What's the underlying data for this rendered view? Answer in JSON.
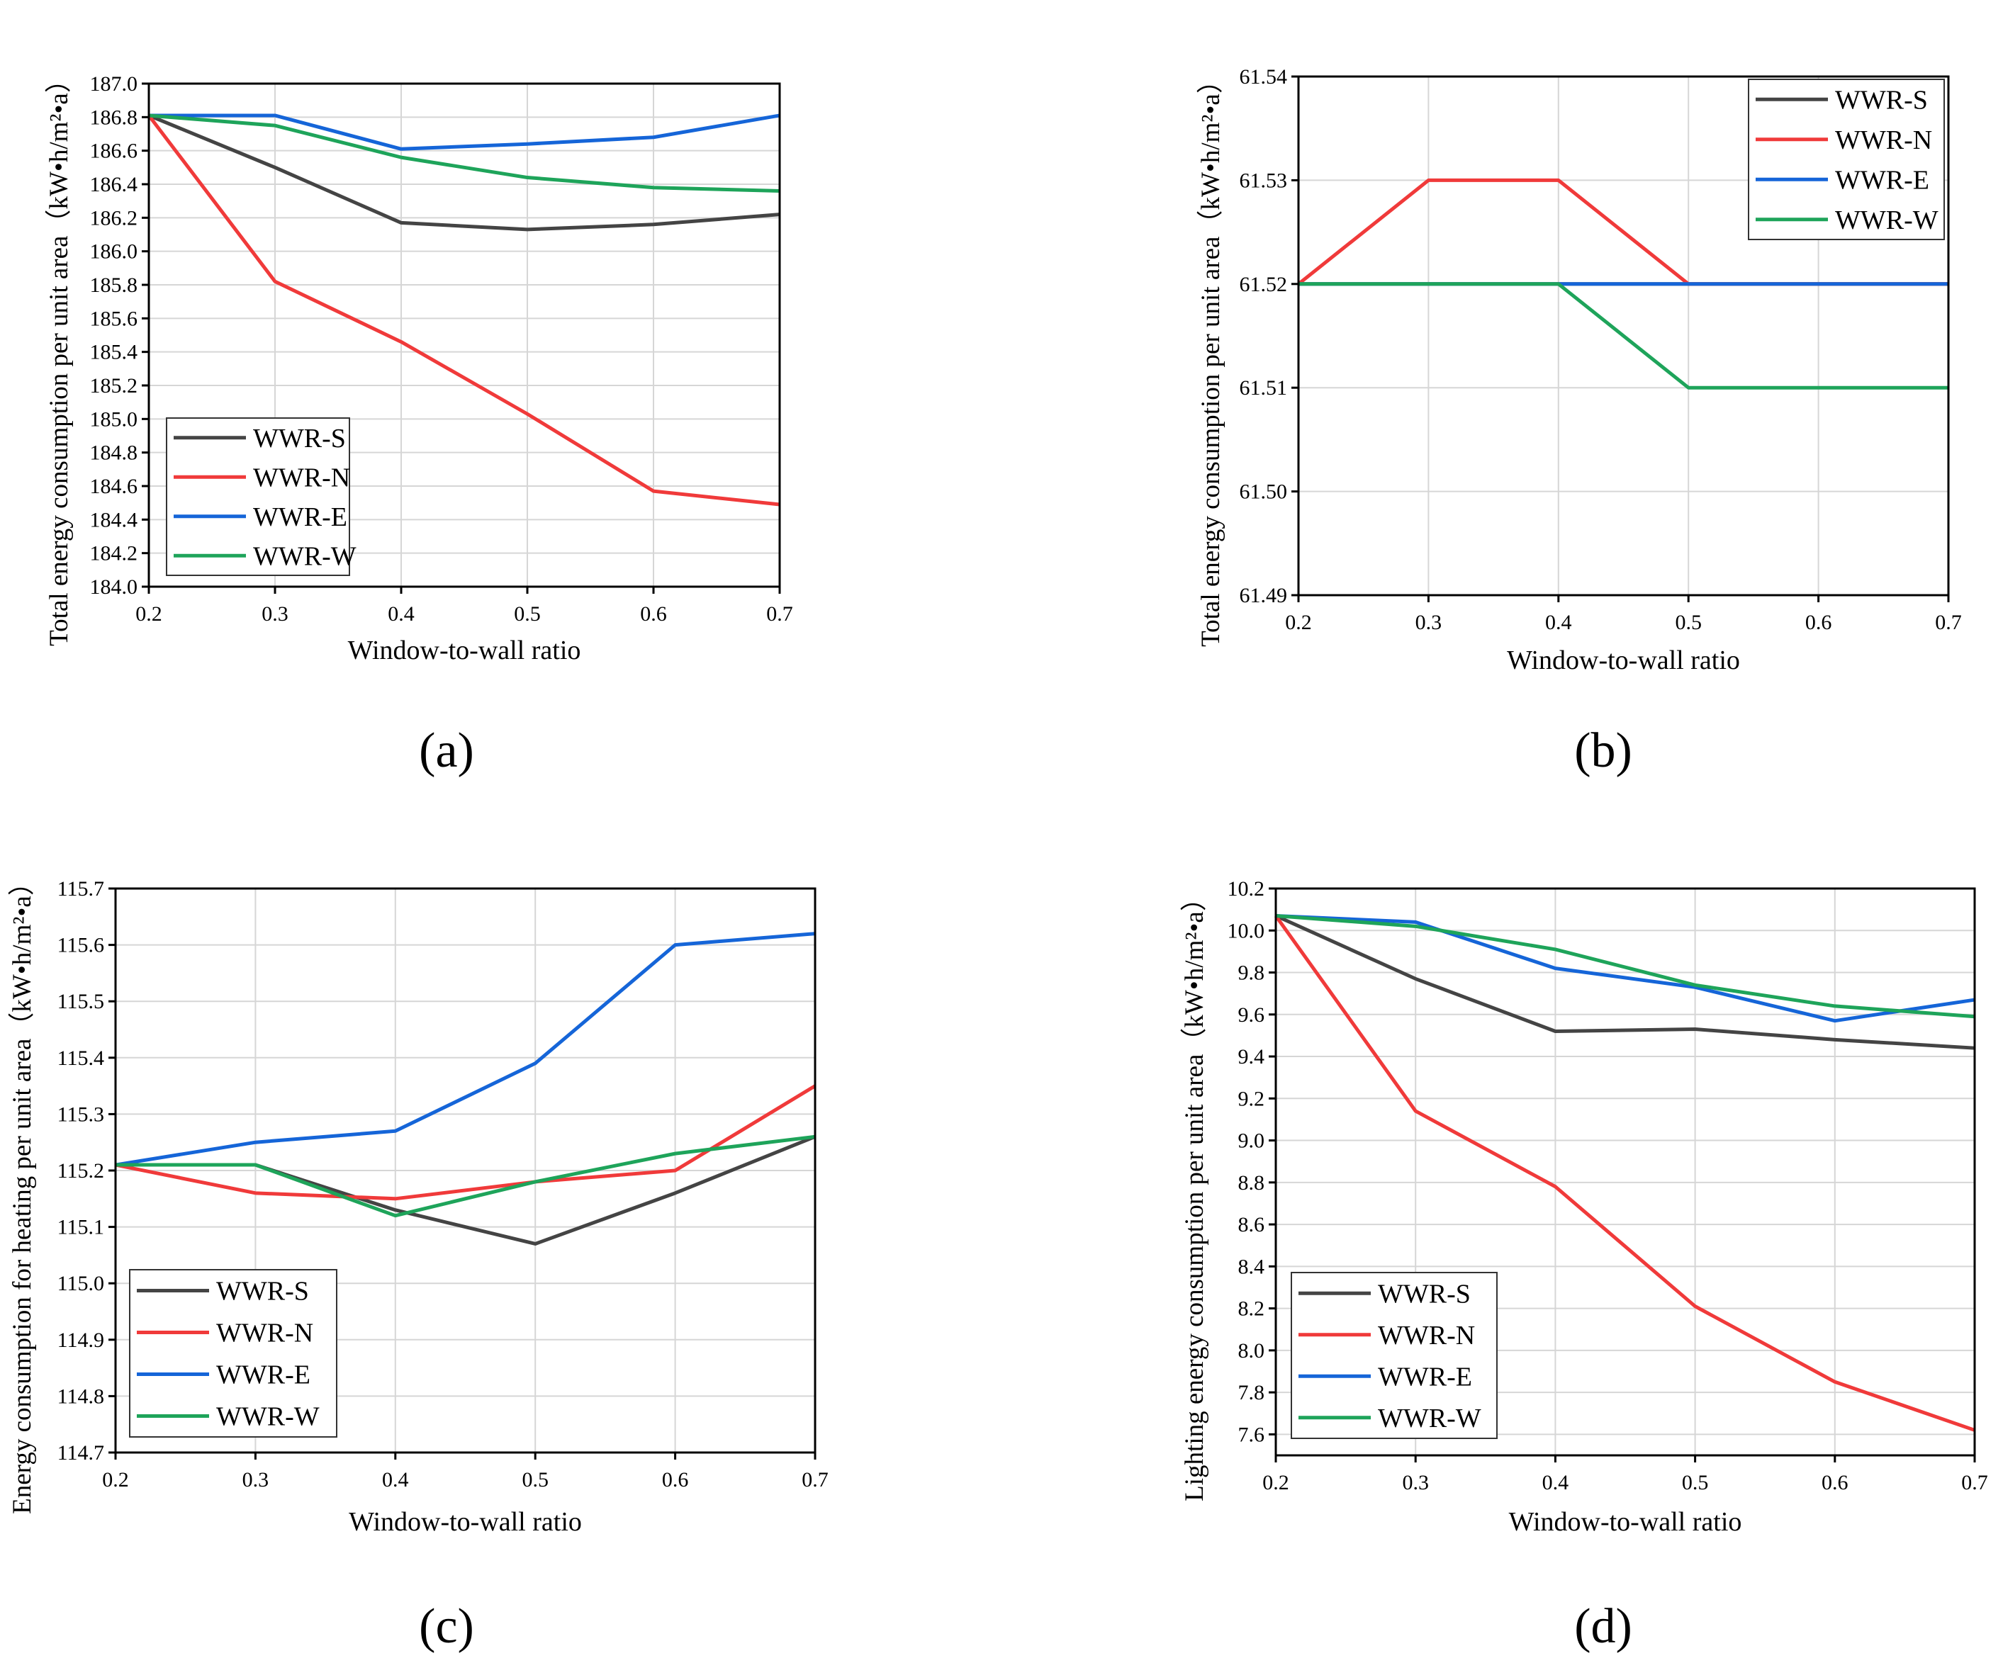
{
  "colors": {
    "WWR-S": "#444444",
    "WWR-N": "#f03a3a",
    "WWR-E": "#1565d8",
    "WWR-W": "#1ea45a"
  },
  "panel_labels": {
    "a": "(a)",
    "b": "(b)",
    "c": "(c)",
    "d": "(d)"
  },
  "chart_data": [
    {
      "id": "a",
      "type": "line",
      "panel_label": "(a)",
      "xlabel": "Window-to-wall ratio",
      "ylabel": "Total energy consumption per unit area（kW•h/m²•a）",
      "xlim": [
        0.2,
        0.7
      ],
      "ylim": [
        184.0,
        187.0
      ],
      "xticks": [
        "0.2",
        "0.3",
        "0.4",
        "0.5",
        "0.6",
        "0.7"
      ],
      "yticks": [
        "184.0",
        "184.2",
        "184.4",
        "184.6",
        "184.8",
        "185.0",
        "185.2",
        "185.4",
        "185.6",
        "185.8",
        "186.0",
        "186.2",
        "186.4",
        "186.6",
        "186.8",
        "187.0"
      ],
      "grid": true,
      "legend": "bottom-left",
      "x": [
        0.2,
        0.3,
        0.4,
        0.5,
        0.6,
        0.7
      ],
      "series": [
        {
          "name": "WWR-S",
          "values": [
            186.81,
            186.5,
            186.17,
            186.13,
            186.16,
            186.22
          ]
        },
        {
          "name": "WWR-N",
          "values": [
            186.81,
            185.82,
            185.46,
            185.03,
            184.57,
            184.49
          ]
        },
        {
          "name": "WWR-E",
          "values": [
            186.81,
            186.81,
            186.61,
            186.64,
            186.68,
            186.81
          ]
        },
        {
          "name": "WWR-W",
          "values": [
            186.81,
            186.75,
            186.56,
            186.44,
            186.38,
            186.36
          ]
        }
      ]
    },
    {
      "id": "b",
      "type": "line",
      "panel_label": "(b)",
      "xlabel": "Window-to-wall ratio",
      "ylabel": "Total energy consumption per unit area（kW•h/m²•a）",
      "xlim": [
        0.2,
        0.7
      ],
      "ylim": [
        61.49,
        61.54
      ],
      "xticks": [
        "0.2",
        "0.3",
        "0.4",
        "0.5",
        "0.6",
        "0.7"
      ],
      "yticks": [
        "61.49",
        "61.50",
        "61.51",
        "61.52",
        "61.53",
        "61.54"
      ],
      "grid": true,
      "legend": "top-right",
      "x": [
        0.2,
        0.3,
        0.4,
        0.5,
        0.6,
        0.7
      ],
      "series": [
        {
          "name": "WWR-S",
          "values": [
            61.52,
            61.52,
            61.52,
            61.52,
            61.52,
            61.52
          ]
        },
        {
          "name": "WWR-N",
          "values": [
            61.52,
            61.53,
            61.53,
            61.52,
            61.52,
            61.52
          ]
        },
        {
          "name": "WWR-E",
          "values": [
            61.52,
            61.52,
            61.52,
            61.52,
            61.52,
            61.52
          ]
        },
        {
          "name": "WWR-W",
          "values": [
            61.52,
            61.52,
            61.52,
            61.51,
            61.51,
            61.51
          ]
        }
      ]
    },
    {
      "id": "c",
      "type": "line",
      "panel_label": "(c)",
      "xlabel": "Window-to-wall ratio",
      "ylabel": "Energy consumption for heating per unit area（kW•h/m²•a）",
      "xlim": [
        0.2,
        0.7
      ],
      "ylim": [
        114.7,
        115.7
      ],
      "xticks": [
        "0.2",
        "0.3",
        "0.4",
        "0.5",
        "0.6",
        "0.7"
      ],
      "yticks": [
        "114.7",
        "114.8",
        "114.9",
        "115.0",
        "115.1",
        "115.2",
        "115.3",
        "115.4",
        "115.5",
        "115.6",
        "115.7"
      ],
      "grid": true,
      "legend": "bottom-left",
      "x": [
        0.2,
        0.3,
        0.4,
        0.5,
        0.6,
        0.7
      ],
      "series": [
        {
          "name": "WWR-S",
          "values": [
            115.21,
            115.21,
            115.13,
            115.07,
            115.16,
            115.26
          ]
        },
        {
          "name": "WWR-N",
          "values": [
            115.21,
            115.16,
            115.15,
            115.18,
            115.2,
            115.35
          ]
        },
        {
          "name": "WWR-E",
          "values": [
            115.21,
            115.25,
            115.27,
            115.39,
            115.6,
            115.62
          ]
        },
        {
          "name": "WWR-W",
          "values": [
            115.21,
            115.21,
            115.12,
            115.18,
            115.23,
            115.26
          ]
        }
      ]
    },
    {
      "id": "d",
      "type": "line",
      "panel_label": "(d)",
      "xlabel": "Window-to-wall ratio",
      "ylabel": "Lighting energy consumption per unit area（kW•h/m²•a）",
      "xlim": [
        0.2,
        0.7
      ],
      "ylim": [
        7.5,
        10.2
      ],
      "xticks": [
        "0.2",
        "0.3",
        "0.4",
        "0.5",
        "0.6",
        "0.7"
      ],
      "yticks": [
        "7.6",
        "7.8",
        "8.0",
        "8.2",
        "8.4",
        "8.6",
        "8.8",
        "9.0",
        "9.2",
        "9.4",
        "9.6",
        "9.8",
        "10.0",
        "10.2"
      ],
      "grid": true,
      "legend": "bottom-left",
      "x": [
        0.2,
        0.3,
        0.4,
        0.5,
        0.6,
        0.7
      ],
      "series": [
        {
          "name": "WWR-S",
          "values": [
            10.07,
            9.77,
            9.52,
            9.53,
            9.48,
            9.44
          ]
        },
        {
          "name": "WWR-N",
          "values": [
            10.07,
            9.14,
            8.78,
            8.21,
            7.85,
            7.62
          ]
        },
        {
          "name": "WWR-E",
          "values": [
            10.07,
            10.04,
            9.82,
            9.73,
            9.57,
            9.67
          ]
        },
        {
          "name": "WWR-W",
          "values": [
            10.07,
            10.02,
            9.91,
            9.74,
            9.64,
            9.59
          ]
        }
      ]
    }
  ]
}
